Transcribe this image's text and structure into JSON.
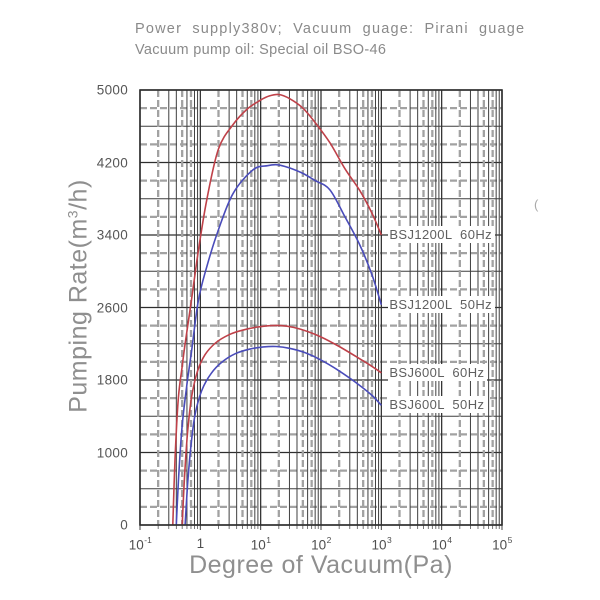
{
  "header": {
    "line1": "Power supply380v; Vacuum guage: Pirani guage",
    "line2": "Vacuum pump oil: Special oil BSO-46"
  },
  "stray_mark": "(",
  "colors": {
    "red_curve": "#bf4149",
    "blue_curve": "#4a4cba",
    "grid_major": "#2e2e2e",
    "grid_minor_dark": "#3f3f3f",
    "grid_minor_gray": "#a2a2a2",
    "axis_title_gray": "#8f8f8f",
    "tick_text": "#565656"
  },
  "chart_data": {
    "type": "line",
    "title": "",
    "xlabel": "Degree of Vacuum(Pa)",
    "ylabel": "Pumping Rate(m3/h)",
    "ylabel_parts": {
      "prefix": "Pumping Rate(m",
      "sup": "3",
      "suffix": "/h)"
    },
    "x_scale": "log",
    "x_range": [
      0.1,
      100000
    ],
    "x_ticks": [
      {
        "base": "10",
        "exp": "-1"
      },
      {
        "base": "1",
        "exp": ""
      },
      {
        "base": "10",
        "exp": "1"
      },
      {
        "base": "10",
        "exp": "2"
      },
      {
        "base": "10",
        "exp": "3"
      },
      {
        "base": "10",
        "exp": "4"
      },
      {
        "base": "10",
        "exp": "5"
      }
    ],
    "y_ticks": [
      5000,
      4200,
      3400,
      2600,
      1800,
      1000,
      0
    ],
    "grid": true,
    "legend_position": "inline-right-of-curve-end",
    "series": [
      {
        "name": "BSJ1200L 60Hz",
        "label": "BSJ1200L  60Hz",
        "color": "#bf4149",
        "points": [
          [
            0.35,
            0
          ],
          [
            0.38,
            900
          ],
          [
            0.43,
            1580
          ],
          [
            0.5,
            1950
          ],
          [
            0.56,
            2200
          ],
          [
            0.72,
            2700
          ],
          [
            0.93,
            3230
          ],
          [
            1.28,
            3790
          ],
          [
            2.0,
            4350
          ],
          [
            3.5,
            4620
          ],
          [
            6,
            4790
          ],
          [
            10,
            4890
          ],
          [
            14,
            4935
          ],
          [
            20,
            4950
          ],
          [
            30,
            4905
          ],
          [
            50,
            4800
          ],
          [
            80,
            4640
          ],
          [
            140,
            4420
          ],
          [
            250,
            4130
          ],
          [
            440,
            3890
          ],
          [
            700,
            3640
          ],
          [
            1000,
            3400
          ]
        ]
      },
      {
        "name": "BSJ1200L 50Hz",
        "label": "BSJ1200L  50Hz",
        "color": "#4a4cba",
        "points": [
          [
            0.4,
            0
          ],
          [
            0.44,
            700
          ],
          [
            0.5,
            1300
          ],
          [
            0.6,
            1750
          ],
          [
            0.72,
            2130
          ],
          [
            0.93,
            2680
          ],
          [
            1.28,
            3050
          ],
          [
            2.0,
            3460
          ],
          [
            3.5,
            3860
          ],
          [
            7.5,
            4120
          ],
          [
            13,
            4165
          ],
          [
            19,
            4175
          ],
          [
            30,
            4140
          ],
          [
            50,
            4080
          ],
          [
            80,
            4000
          ],
          [
            140,
            3900
          ],
          [
            250,
            3600
          ],
          [
            440,
            3290
          ],
          [
            700,
            2960
          ],
          [
            1000,
            2630
          ]
        ]
      },
      {
        "name": "BSJ600L 60Hz",
        "label": "BSJ600L  60Hz",
        "color": "#bf4149",
        "points": [
          [
            0.5,
            0
          ],
          [
            0.55,
            700
          ],
          [
            0.62,
            1250
          ],
          [
            0.72,
            1620
          ],
          [
            0.9,
            1900
          ],
          [
            1.2,
            2080
          ],
          [
            1.8,
            2210
          ],
          [
            3,
            2300
          ],
          [
            5,
            2350
          ],
          [
            9,
            2385
          ],
          [
            15,
            2400
          ],
          [
            22,
            2400
          ],
          [
            35,
            2380
          ],
          [
            60,
            2335
          ],
          [
            100,
            2275
          ],
          [
            200,
            2170
          ],
          [
            400,
            2050
          ],
          [
            700,
            1950
          ],
          [
            1000,
            1880
          ]
        ]
      },
      {
        "name": "BSJ600L 50Hz",
        "label": "BSJ600L  50Hz",
        "color": "#4a4cba",
        "points": [
          [
            0.56,
            0
          ],
          [
            0.62,
            600
          ],
          [
            0.7,
            1080
          ],
          [
            0.82,
            1420
          ],
          [
            1.05,
            1680
          ],
          [
            1.5,
            1870
          ],
          [
            2.3,
            2000
          ],
          [
            3.8,
            2090
          ],
          [
            6.5,
            2140
          ],
          [
            11,
            2165
          ],
          [
            18,
            2170
          ],
          [
            30,
            2150
          ],
          [
            55,
            2100
          ],
          [
            100,
            2020
          ],
          [
            200,
            1900
          ],
          [
            400,
            1760
          ],
          [
            700,
            1630
          ],
          [
            1000,
            1520
          ]
        ]
      }
    ]
  }
}
